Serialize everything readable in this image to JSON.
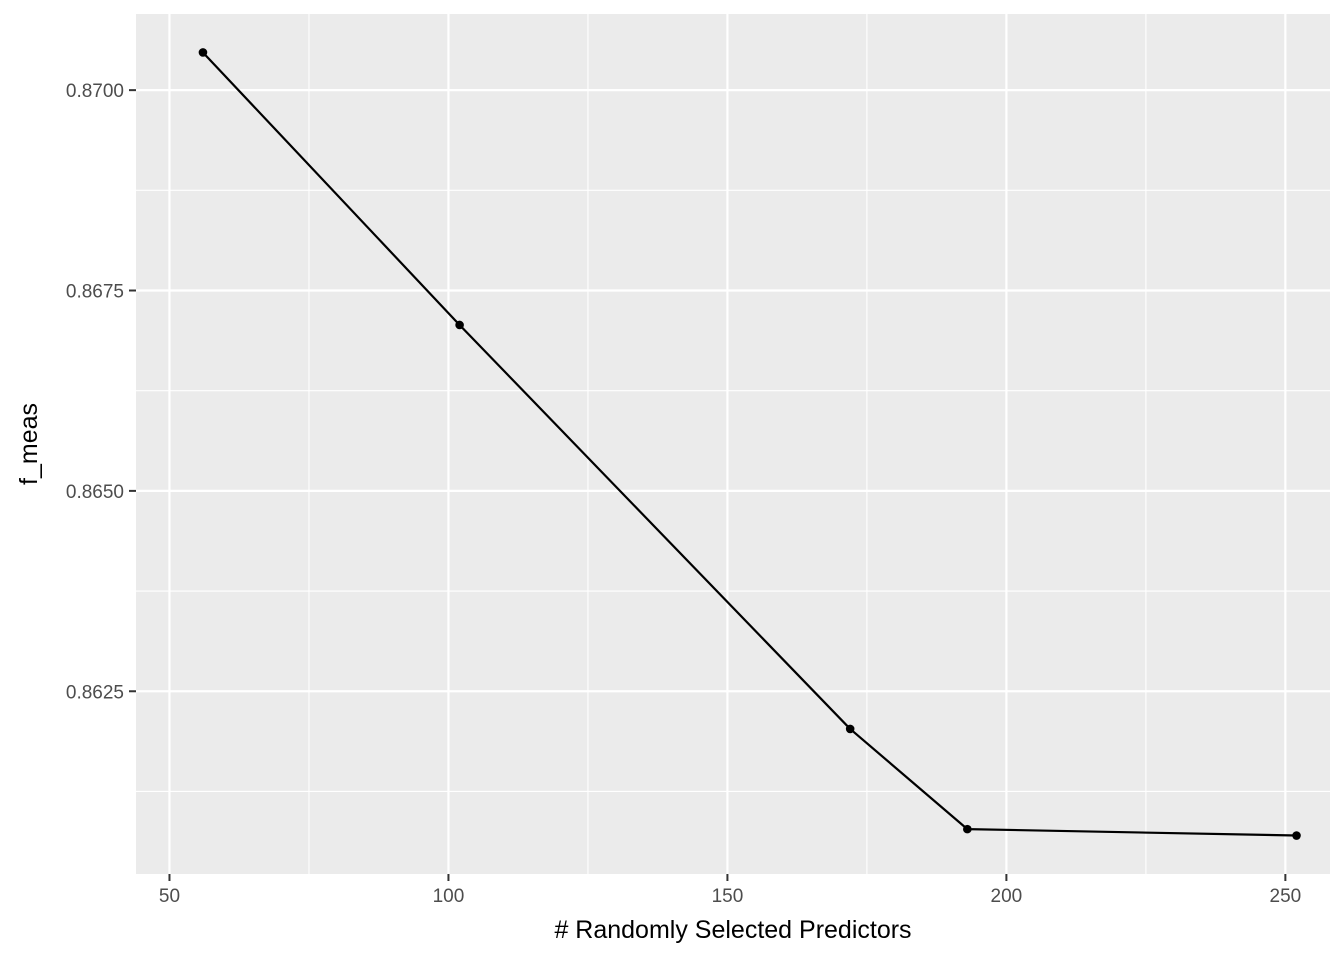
{
  "chart_data": {
    "type": "line",
    "title": "",
    "xlabel": "# Randomly Selected Predictors",
    "ylabel": "f_meas",
    "xlim": [
      44,
      258
    ],
    "ylim": [
      0.86022,
      0.87095
    ],
    "x_ticks": [
      50,
      100,
      150,
      200,
      250
    ],
    "x_tick_labels": [
      "50",
      "100",
      "150",
      "200",
      "250"
    ],
    "x_minor_ticks": [
      75,
      125,
      175,
      225
    ],
    "y_ticks": [
      0.8625,
      0.865,
      0.8675,
      0.87
    ],
    "y_tick_labels": [
      "0.8625",
      "0.8650",
      "0.8675",
      "0.8700"
    ],
    "y_minor_ticks": [
      0.86125,
      0.86375,
      0.86625,
      0.86875
    ],
    "grid": true,
    "legend": "none",
    "series": [
      {
        "x": [
          56,
          102,
          172,
          193,
          252
        ],
        "y": [
          0.87047,
          0.86707,
          0.86203,
          0.86078,
          0.8607
        ],
        "color": "#000000"
      }
    ],
    "colors": {
      "panel_background": "#ebebeb",
      "grid": "#ffffff",
      "line": "#000000",
      "tick_text": "#4d4d4d",
      "axis_title": "#000000",
      "tick_mark": "#333333"
    }
  }
}
